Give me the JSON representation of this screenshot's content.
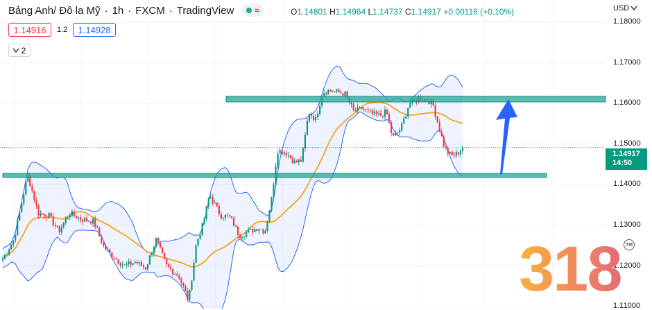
{
  "header": {
    "symbol": "Bảng Anh/ Đô la Mỹ",
    "interval": "1h",
    "exchange": "FXCM",
    "source": "TradingView",
    "wave_glyph": "≈",
    "status_color": "#22ab94"
  },
  "ohlc": {
    "o_label": "O",
    "o": "1.14801",
    "h_label": "H",
    "h": "1.14964",
    "l_label": "L",
    "l": "1.14737",
    "c_label": "C",
    "c": "1.14917",
    "change": "+0.00116 (+0.10%)"
  },
  "quotes": {
    "sell": "1.14916",
    "spread": "1.2",
    "buy": "1.14928"
  },
  "indicator_toggle": {
    "count": "2",
    "icon": "chevron-down-icon"
  },
  "axis": {
    "currency": "USD",
    "currency_icon": "chevron-down-icon"
  },
  "price_tag": {
    "price": "1.14917",
    "countdown": "14:50",
    "color": "#089981"
  },
  "watermark": {
    "text": "318",
    "tm": "TM"
  },
  "colors": {
    "up": "#089981",
    "down": "#f23645",
    "band": "#2962ff",
    "ma": "#f7a21b",
    "zone": "#26a69a",
    "arrow": "#2962ff"
  },
  "chart_data": {
    "type": "candlestick",
    "y_ticks": [
      "1.18000",
      "1.17000",
      "1.16000",
      "1.15000",
      "1.14000",
      "1.13000",
      "1.12000",
      "1.11000"
    ],
    "ylim": [
      1.1095,
      1.1855
    ],
    "candle_count": 220,
    "resistance_zone": [
      1.1604,
      1.1618
    ],
    "support_zone": [
      1.1418,
      1.1428
    ],
    "last_price": 1.14917,
    "arrow": {
      "from": 1.1426,
      "to": 1.1611
    },
    "indicators": [
      "Bollinger Bands",
      "Moving Average"
    ]
  }
}
